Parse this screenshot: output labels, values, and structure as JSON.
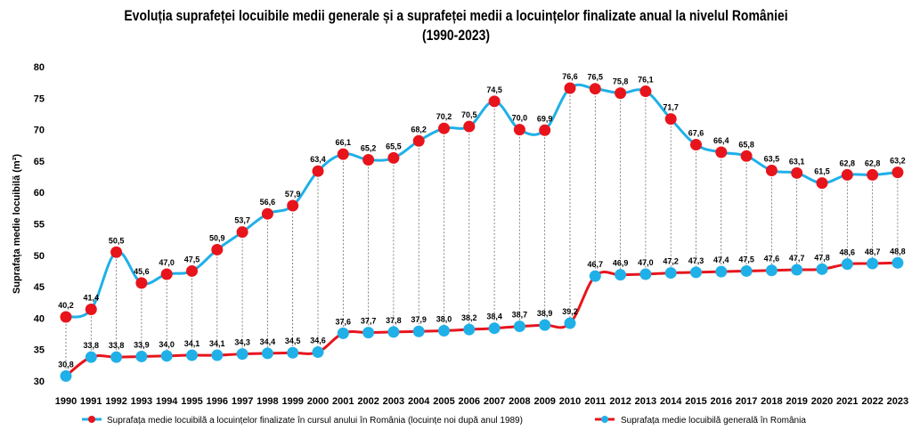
{
  "chart_data": {
    "type": "line",
    "title_line1": "Evoluția suprafeței locuibile medii generale și a suprafeței medii a locuințelor finalizate anual la nivelul României",
    "title_line2": "(1990-2023)",
    "ylabel": "Suprafața medie locuibilă (m²)",
    "ylim": [
      30,
      80
    ],
    "yticks": [
      30,
      35,
      40,
      45,
      50,
      55,
      60,
      65,
      70,
      75,
      80
    ],
    "grid": false,
    "legend_position": "bottom",
    "categories": [
      "1990",
      "1991",
      "1992",
      "1993",
      "1994",
      "1995",
      "1996",
      "1997",
      "1998",
      "1999",
      "2000",
      "2001",
      "2002",
      "2003",
      "2004",
      "2005",
      "2006",
      "2007",
      "2008",
      "2009",
      "2010",
      "2011",
      "2012",
      "2013",
      "2014",
      "2015",
      "2016",
      "2017",
      "2018",
      "2019",
      "2020",
      "2021",
      "2022",
      "2023"
    ],
    "series": [
      {
        "name": "Suprafața medie locuibilă a locuințelor finalizate în cursul anului în România (locuințe noi după anul 1989)",
        "line_color": "#1fb0e8",
        "marker_color": "#e8141c",
        "values": [
          40.2,
          41.4,
          50.5,
          45.6,
          47.0,
          47.5,
          50.9,
          53.7,
          56.6,
          57.9,
          63.4,
          66.1,
          65.2,
          65.5,
          68.2,
          70.2,
          70.5,
          74.5,
          70.0,
          69.9,
          76.6,
          76.5,
          75.8,
          76.1,
          71.7,
          67.6,
          66.4,
          65.8,
          63.5,
          63.1,
          61.5,
          62.8,
          62.8,
          63.2
        ],
        "labels": [
          "40,2",
          "41,4",
          "50,5",
          "45,6",
          "47,0",
          "47,5",
          "50,9",
          "53,7",
          "56,6",
          "57,9",
          "63,4",
          "66,1",
          "65,2",
          "65,5",
          "68,2",
          "70,2",
          "70,5",
          "74,5",
          "70,0",
          "69,9",
          "76,6",
          "76,5",
          "75,8",
          "76,1",
          "71,7",
          "67,6",
          "66,4",
          "65,8",
          "63,5",
          "63,1",
          "61,5",
          "62,8",
          "62,8",
          "63,2"
        ]
      },
      {
        "name": "Suprafața medie locuibilă generală în România",
        "line_color": "#e8141c",
        "marker_color": "#1fb0e8",
        "values": [
          30.8,
          33.8,
          33.8,
          33.9,
          34.0,
          34.1,
          34.1,
          34.3,
          34.4,
          34.5,
          34.6,
          37.6,
          37.7,
          37.8,
          37.9,
          38.0,
          38.2,
          38.4,
          38.7,
          38.9,
          39.2,
          46.7,
          46.9,
          47.0,
          47.2,
          47.3,
          47.4,
          47.5,
          47.6,
          47.7,
          47.8,
          48.6,
          48.7,
          48.8
        ],
        "labels": [
          "30,8",
          "33,8",
          "33,8",
          "33,9",
          "34,0",
          "34,1",
          "34,1",
          "34,3",
          "34,4",
          "34,5",
          "34,6",
          "37,6",
          "37,7",
          "37,8",
          "37,9",
          "38,0",
          "38,2",
          "38,4",
          "38,7",
          "38,9",
          "39,2",
          "46,7",
          "46,9",
          "47,0",
          "47,2",
          "47,3",
          "47,4",
          "47,5",
          "47,6",
          "47,7",
          "47,8",
          "48,6",
          "48,7",
          "48,8"
        ]
      }
    ]
  }
}
